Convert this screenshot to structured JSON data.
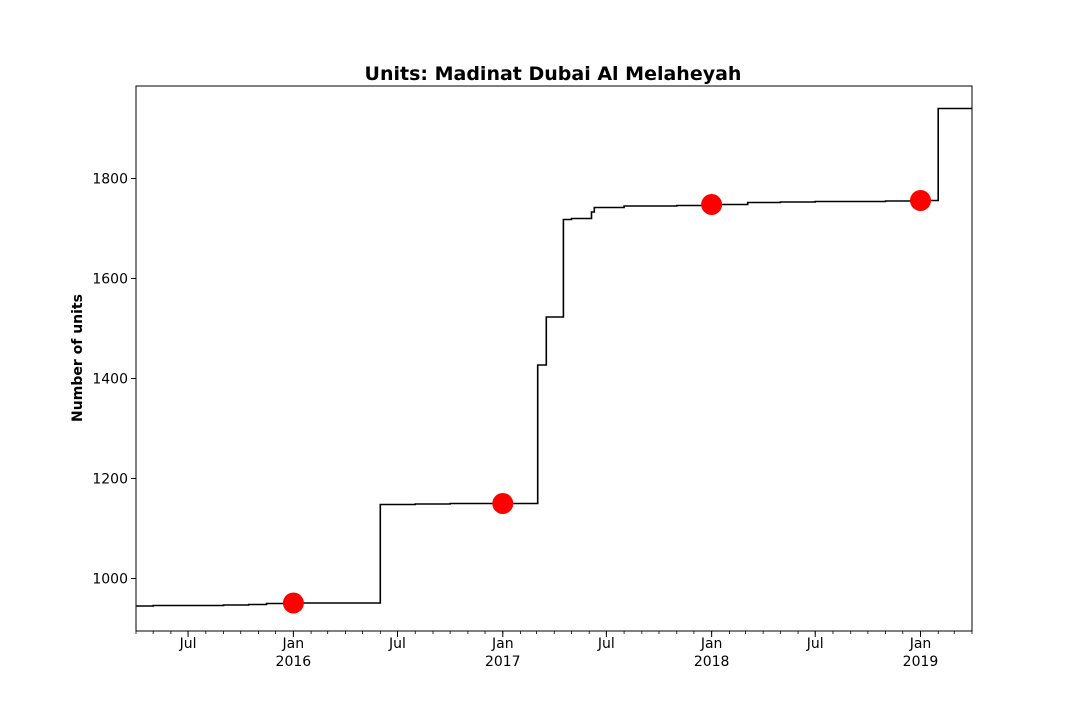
{
  "chart_data": {
    "type": "line",
    "title": "Units: Madinat Dubai Al Melaheyah",
    "xlabel": "",
    "ylabel": "Number of units",
    "x_range": [
      "2015-04-01",
      "2019-04-01"
    ],
    "ylim": [
      895,
      1985
    ],
    "y_ticks": [
      1000,
      1200,
      1400,
      1600,
      1800
    ],
    "x_ticks": [
      {
        "date": "2015-07-01",
        "label": "Jul",
        "sublabel": ""
      },
      {
        "date": "2016-01-01",
        "label": "Jan",
        "sublabel": "2016"
      },
      {
        "date": "2016-07-01",
        "label": "Jul",
        "sublabel": ""
      },
      {
        "date": "2017-01-01",
        "label": "Jan",
        "sublabel": "2017"
      },
      {
        "date": "2017-07-01",
        "label": "Jul",
        "sublabel": ""
      },
      {
        "date": "2018-01-01",
        "label": "Jan",
        "sublabel": "2018"
      },
      {
        "date": "2018-07-01",
        "label": "Jul",
        "sublabel": ""
      },
      {
        "date": "2019-01-01",
        "label": "Jan",
        "sublabel": "2019"
      }
    ],
    "grid": false,
    "series": [
      {
        "name": "",
        "color": "#000000",
        "style": "step",
        "points": [
          [
            "2015-04-01",
            945
          ],
          [
            "2015-05-01",
            946
          ],
          [
            "2015-07-01",
            946
          ],
          [
            "2015-09-01",
            947
          ],
          [
            "2015-10-15",
            948
          ],
          [
            "2015-11-15",
            950
          ],
          [
            "2016-01-01",
            951
          ],
          [
            "2016-05-31",
            951
          ],
          [
            "2016-06-01",
            1148
          ],
          [
            "2016-08-01",
            1149
          ],
          [
            "2016-10-01",
            1150
          ],
          [
            "2017-03-01",
            1150
          ],
          [
            "2017-03-03",
            1427
          ],
          [
            "2017-03-16",
            1427
          ],
          [
            "2017-03-18",
            1523
          ],
          [
            "2017-04-15",
            1523
          ],
          [
            "2017-04-17",
            1718
          ],
          [
            "2017-05-01",
            1720
          ],
          [
            "2017-06-01",
            1720
          ],
          [
            "2017-06-05",
            1733
          ],
          [
            "2017-06-10",
            1742
          ],
          [
            "2017-07-01",
            1742
          ],
          [
            "2017-08-01",
            1745
          ],
          [
            "2017-11-01",
            1746
          ],
          [
            "2018-01-01",
            1748
          ],
          [
            "2018-03-01",
            1748
          ],
          [
            "2018-03-05",
            1752
          ],
          [
            "2018-05-01",
            1753
          ],
          [
            "2018-07-01",
            1754
          ],
          [
            "2018-11-01",
            1755
          ],
          [
            "2019-01-01",
            1756
          ],
          [
            "2019-01-30",
            1756
          ],
          [
            "2019-02-01",
            1940
          ],
          [
            "2019-04-01",
            1940
          ]
        ]
      }
    ],
    "markers": [
      {
        "date": "2016-01-01",
        "value": 951
      },
      {
        "date": "2017-01-01",
        "value": 1150
      },
      {
        "date": "2018-01-01",
        "value": 1748
      },
      {
        "date": "2019-01-01",
        "value": 1756
      }
    ],
    "marker_color": "#ff0000"
  }
}
